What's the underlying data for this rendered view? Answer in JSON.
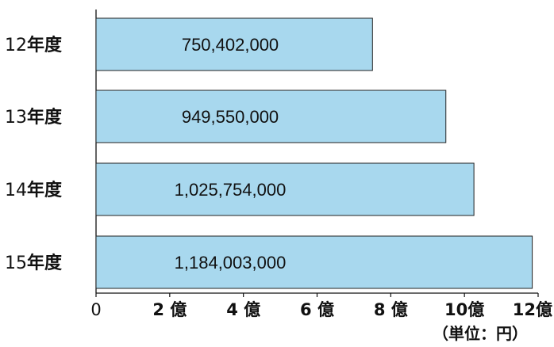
{
  "chart_data": {
    "type": "bar",
    "orientation": "horizontal",
    "categories": [
      "12年度",
      "13年度",
      "14年度",
      "15年度"
    ],
    "values": [
      750402000,
      949550000,
      1025754000,
      1184003000
    ],
    "value_labels": [
      "750,402,000",
      "949,550,000",
      "1,025,754,000",
      "1,184,003,000"
    ],
    "xlim": [
      0,
      1200000000
    ],
    "x_ticks": [
      {
        "value": 0,
        "label": "0"
      },
      {
        "value": 200000000,
        "label": "2 億"
      },
      {
        "value": 400000000,
        "label": "4 億"
      },
      {
        "value": 600000000,
        "label": "6 億"
      },
      {
        "value": 800000000,
        "label": "8 億"
      },
      {
        "value": 1000000000,
        "label": "10億"
      },
      {
        "value": 1200000000,
        "label": "12億"
      }
    ],
    "unit_label": "（単位：円）",
    "grid": false,
    "bar_color": "#a8d8ee",
    "bar_stroke": "#222222"
  }
}
